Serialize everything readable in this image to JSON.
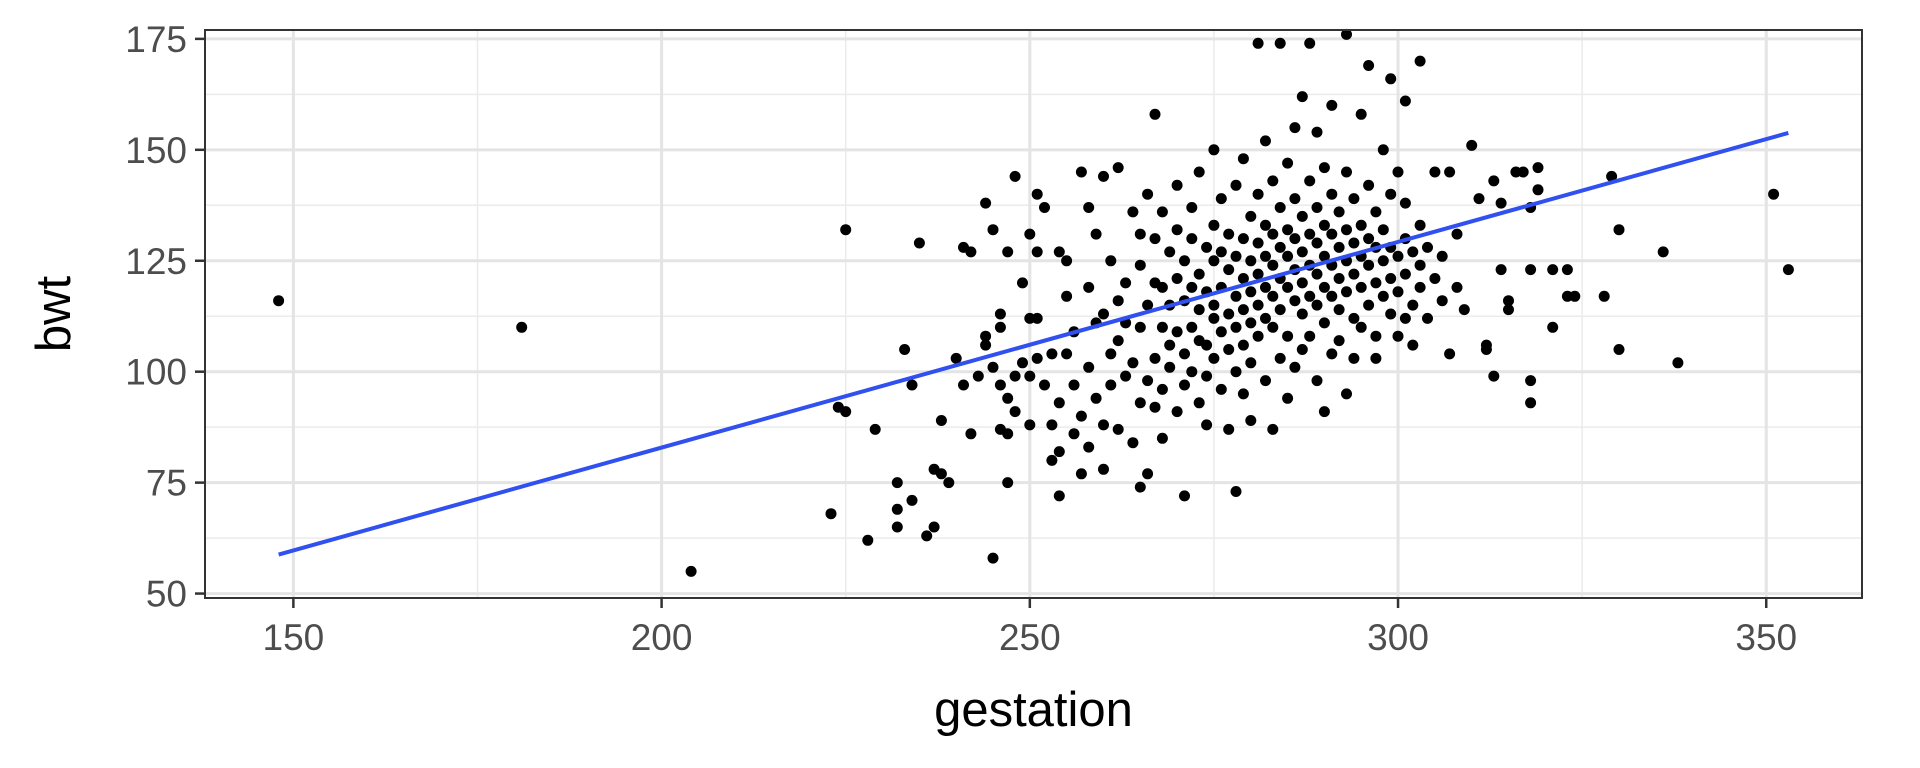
{
  "chart_data": {
    "type": "scatter",
    "title": "",
    "xlabel": "gestation",
    "ylabel": "bwt",
    "xlim": [
      138,
      363
    ],
    "ylim": [
      49,
      177
    ],
    "x_ticks": [
      150,
      200,
      250,
      300,
      350
    ],
    "y_ticks": [
      50,
      75,
      100,
      125,
      150,
      175
    ],
    "x_tick_labels": [
      "150",
      "200",
      "250",
      "300",
      "350"
    ],
    "y_tick_labels": [
      "50",
      "75",
      "100",
      "125",
      "150",
      "175"
    ],
    "grid": true,
    "legend": "none",
    "point_color": "#000000",
    "line_color": "#3050f0",
    "points": [
      [
        148,
        116
      ],
      [
        181,
        110
      ],
      [
        204,
        55
      ],
      [
        223,
        68
      ],
      [
        224,
        92
      ],
      [
        225,
        91
      ],
      [
        225,
        132
      ],
      [
        228,
        62
      ],
      [
        229,
        87
      ],
      [
        232,
        69
      ],
      [
        232,
        65
      ],
      [
        232,
        75
      ],
      [
        233,
        105
      ],
      [
        234,
        97
      ],
      [
        234,
        71
      ],
      [
        235,
        129
      ],
      [
        236,
        63
      ],
      [
        237,
        65
      ],
      [
        237,
        78
      ],
      [
        238,
        77
      ],
      [
        238,
        89
      ],
      [
        239,
        75
      ],
      [
        240,
        103
      ],
      [
        241,
        128
      ],
      [
        241,
        97
      ],
      [
        242,
        127
      ],
      [
        242,
        86
      ],
      [
        243,
        99
      ],
      [
        244,
        138
      ],
      [
        244,
        108
      ],
      [
        244,
        106
      ],
      [
        245,
        58
      ],
      [
        245,
        132
      ],
      [
        245,
        101
      ],
      [
        246,
        87
      ],
      [
        246,
        110
      ],
      [
        246,
        97
      ],
      [
        246,
        113
      ],
      [
        247,
        75
      ],
      [
        247,
        94
      ],
      [
        247,
        86
      ],
      [
        247,
        127
      ],
      [
        248,
        144
      ],
      [
        248,
        99
      ],
      [
        248,
        91
      ],
      [
        249,
        102
      ],
      [
        249,
        120
      ],
      [
        250,
        112
      ],
      [
        250,
        131
      ],
      [
        250,
        99
      ],
      [
        250,
        88
      ],
      [
        251,
        140
      ],
      [
        251,
        127
      ],
      [
        251,
        103
      ],
      [
        251,
        112
      ],
      [
        252,
        137
      ],
      [
        252,
        97
      ],
      [
        253,
        104
      ],
      [
        253,
        80
      ],
      [
        253,
        88
      ],
      [
        254,
        72
      ],
      [
        254,
        82
      ],
      [
        254,
        93
      ],
      [
        254,
        127
      ],
      [
        255,
        117
      ],
      [
        255,
        104
      ],
      [
        255,
        125
      ],
      [
        256,
        86
      ],
      [
        256,
        97
      ],
      [
        256,
        109
      ],
      [
        257,
        90
      ],
      [
        257,
        77
      ],
      [
        257,
        145
      ],
      [
        258,
        137
      ],
      [
        258,
        119
      ],
      [
        258,
        101
      ],
      [
        258,
        83
      ],
      [
        259,
        111
      ],
      [
        259,
        94
      ],
      [
        259,
        131
      ],
      [
        260,
        113
      ],
      [
        260,
        88
      ],
      [
        260,
        78
      ],
      [
        260,
        144
      ],
      [
        261,
        104
      ],
      [
        261,
        97
      ],
      [
        261,
        125
      ],
      [
        262,
        146
      ],
      [
        262,
        116
      ],
      [
        262,
        87
      ],
      [
        262,
        107
      ],
      [
        263,
        99
      ],
      [
        263,
        120
      ],
      [
        263,
        111
      ],
      [
        264,
        84
      ],
      [
        264,
        136
      ],
      [
        264,
        102
      ],
      [
        265,
        93
      ],
      [
        265,
        131
      ],
      [
        265,
        74
      ],
      [
        265,
        110
      ],
      [
        265,
        124
      ],
      [
        266,
        98
      ],
      [
        266,
        115
      ],
      [
        266,
        77
      ],
      [
        266,
        140
      ],
      [
        267,
        103
      ],
      [
        267,
        120
      ],
      [
        267,
        92
      ],
      [
        267,
        158
      ],
      [
        267,
        130
      ],
      [
        268,
        110
      ],
      [
        268,
        96
      ],
      [
        268,
        119
      ],
      [
        268,
        85
      ],
      [
        268,
        136
      ],
      [
        269,
        101
      ],
      [
        269,
        115
      ],
      [
        269,
        127
      ],
      [
        269,
        106
      ],
      [
        270,
        91
      ],
      [
        270,
        109
      ],
      [
        270,
        121
      ],
      [
        270,
        132
      ],
      [
        270,
        142
      ],
      [
        271,
        116
      ],
      [
        271,
        104
      ],
      [
        271,
        97
      ],
      [
        271,
        125
      ],
      [
        271,
        72
      ],
      [
        272,
        110
      ],
      [
        272,
        119
      ],
      [
        272,
        130
      ],
      [
        272,
        137
      ],
      [
        272,
        100
      ],
      [
        273,
        114
      ],
      [
        273,
        122
      ],
      [
        273,
        107
      ],
      [
        273,
        93
      ],
      [
        273,
        145
      ],
      [
        274,
        118
      ],
      [
        274,
        128
      ],
      [
        274,
        106
      ],
      [
        274,
        99
      ],
      [
        274,
        88
      ],
      [
        275,
        115
      ],
      [
        275,
        125
      ],
      [
        275,
        112
      ],
      [
        275,
        133
      ],
      [
        275,
        103
      ],
      [
        275,
        150
      ],
      [
        276,
        119
      ],
      [
        276,
        109
      ],
      [
        276,
        127
      ],
      [
        276,
        96
      ],
      [
        276,
        139
      ],
      [
        277,
        113
      ],
      [
        277,
        123
      ],
      [
        277,
        105
      ],
      [
        277,
        131
      ],
      [
        277,
        87
      ],
      [
        278,
        117
      ],
      [
        278,
        110
      ],
      [
        278,
        126
      ],
      [
        278,
        142
      ],
      [
        278,
        100
      ],
      [
        278,
        73
      ],
      [
        279,
        121
      ],
      [
        279,
        114
      ],
      [
        279,
        130
      ],
      [
        279,
        106
      ],
      [
        279,
        95
      ],
      [
        279,
        148
      ],
      [
        280,
        118
      ],
      [
        280,
        125
      ],
      [
        280,
        111
      ],
      [
        280,
        135
      ],
      [
        280,
        102
      ],
      [
        280,
        89
      ],
      [
        281,
        122
      ],
      [
        281,
        115
      ],
      [
        281,
        129
      ],
      [
        281,
        108
      ],
      [
        281,
        140
      ],
      [
        281,
        174
      ],
      [
        282,
        119
      ],
      [
        282,
        126
      ],
      [
        282,
        112
      ],
      [
        282,
        133
      ],
      [
        282,
        98
      ],
      [
        282,
        152
      ],
      [
        283,
        117
      ],
      [
        283,
        124
      ],
      [
        283,
        131
      ],
      [
        283,
        110
      ],
      [
        283,
        143
      ],
      [
        283,
        87
      ],
      [
        284,
        121
      ],
      [
        284,
        128
      ],
      [
        284,
        114
      ],
      [
        284,
        137
      ],
      [
        284,
        103
      ],
      [
        284,
        174
      ],
      [
        285,
        119
      ],
      [
        285,
        126
      ],
      [
        285,
        132
      ],
      [
        285,
        108
      ],
      [
        285,
        147
      ],
      [
        285,
        94
      ],
      [
        286,
        123
      ],
      [
        286,
        116
      ],
      [
        286,
        130
      ],
      [
        286,
        139
      ],
      [
        286,
        101
      ],
      [
        286,
        155
      ],
      [
        287,
        120
      ],
      [
        287,
        127
      ],
      [
        287,
        113
      ],
      [
        287,
        135
      ],
      [
        287,
        105
      ],
      [
        287,
        162
      ],
      [
        288,
        124
      ],
      [
        288,
        117
      ],
      [
        288,
        131
      ],
      [
        288,
        143
      ],
      [
        288,
        108
      ],
      [
        288,
        174
      ],
      [
        289,
        122
      ],
      [
        289,
        129
      ],
      [
        289,
        115
      ],
      [
        289,
        137
      ],
      [
        289,
        98
      ],
      [
        289,
        154
      ],
      [
        290,
        119
      ],
      [
        290,
        126
      ],
      [
        290,
        133
      ],
      [
        290,
        111
      ],
      [
        290,
        146
      ],
      [
        290,
        91
      ],
      [
        291,
        124
      ],
      [
        291,
        131
      ],
      [
        291,
        117
      ],
      [
        291,
        140
      ],
      [
        291,
        104
      ],
      [
        291,
        160
      ],
      [
        292,
        121
      ],
      [
        292,
        128
      ],
      [
        292,
        114
      ],
      [
        292,
        136
      ],
      [
        292,
        107
      ],
      [
        293,
        125
      ],
      [
        293,
        132
      ],
      [
        293,
        118
      ],
      [
        293,
        145
      ],
      [
        293,
        176
      ],
      [
        293,
        95
      ],
      [
        294,
        122
      ],
      [
        294,
        129
      ],
      [
        294,
        112
      ],
      [
        294,
        139
      ],
      [
        294,
        103
      ],
      [
        295,
        126
      ],
      [
        295,
        119
      ],
      [
        295,
        133
      ],
      [
        295,
        158
      ],
      [
        295,
        110
      ],
      [
        296,
        124
      ],
      [
        296,
        130
      ],
      [
        296,
        115
      ],
      [
        296,
        142
      ],
      [
        296,
        169
      ],
      [
        297,
        120
      ],
      [
        297,
        128
      ],
      [
        297,
        108
      ],
      [
        297,
        136
      ],
      [
        297,
        103
      ],
      [
        298,
        125
      ],
      [
        298,
        132
      ],
      [
        298,
        117
      ],
      [
        298,
        150
      ],
      [
        299,
        121
      ],
      [
        299,
        128
      ],
      [
        299,
        113
      ],
      [
        299,
        140
      ],
      [
        299,
        166
      ],
      [
        300,
        126
      ],
      [
        300,
        118
      ],
      [
        300,
        108
      ],
      [
        300,
        145
      ],
      [
        301,
        122
      ],
      [
        301,
        130
      ],
      [
        301,
        112
      ],
      [
        301,
        138
      ],
      [
        301,
        161
      ],
      [
        302,
        127
      ],
      [
        302,
        115
      ],
      [
        302,
        106
      ],
      [
        303,
        124
      ],
      [
        303,
        119
      ],
      [
        303,
        170
      ],
      [
        303,
        133
      ],
      [
        304,
        128
      ],
      [
        304,
        112
      ],
      [
        305,
        121
      ],
      [
        305,
        145
      ],
      [
        306,
        126
      ],
      [
        306,
        116
      ],
      [
        307,
        145
      ],
      [
        307,
        104
      ],
      [
        308,
        131
      ],
      [
        308,
        119
      ],
      [
        309,
        114
      ],
      [
        310,
        151
      ],
      [
        311,
        139
      ],
      [
        312,
        106
      ],
      [
        312,
        105
      ],
      [
        313,
        143
      ],
      [
        313,
        99
      ],
      [
        314,
        123
      ],
      [
        314,
        138
      ],
      [
        315,
        116
      ],
      [
        315,
        114
      ],
      [
        316,
        145
      ],
      [
        317,
        145
      ],
      [
        318,
        137
      ],
      [
        318,
        123
      ],
      [
        318,
        98
      ],
      [
        318,
        93
      ],
      [
        319,
        146
      ],
      [
        319,
        141
      ],
      [
        321,
        123
      ],
      [
        321,
        110
      ],
      [
        323,
        117
      ],
      [
        323,
        123
      ],
      [
        324,
        117
      ],
      [
        328,
        117
      ],
      [
        329,
        144
      ],
      [
        330,
        132
      ],
      [
        330,
        105
      ],
      [
        336,
        127
      ],
      [
        338,
        102
      ],
      [
        351,
        140
      ],
      [
        353,
        123
      ]
    ],
    "fit_line": {
      "x": [
        148,
        353
      ],
      "y": [
        58.8,
        153.8
      ]
    }
  }
}
